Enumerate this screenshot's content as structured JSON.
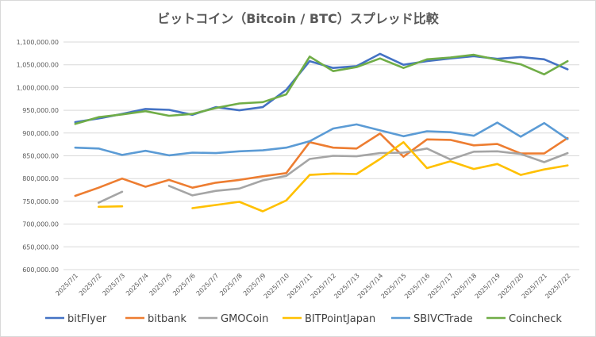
{
  "chart_data": {
    "type": "line",
    "title": "ビットコイン（Bitcoin / BTC）スプレッド比較",
    "xlabel": "",
    "ylabel": "",
    "ylim": [
      600000,
      1100000
    ],
    "yticks": [
      "600,000.00",
      "650,000.00",
      "700,000.00",
      "750,000.00",
      "800,000.00",
      "850,000.00",
      "900,000.00",
      "950,000.00",
      "1,000,000.00",
      "1,050,000.00",
      "1,100,000.00"
    ],
    "ytick_values": [
      600000,
      650000,
      700000,
      750000,
      800000,
      850000,
      900000,
      950000,
      1000000,
      1050000,
      1100000
    ],
    "grid": true,
    "legend_position": "bottom",
    "categories": [
      "2025/7/1",
      "2025/7/2",
      "2025/7/3",
      "2025/7/4",
      "2025/7/5",
      "2025/7/6",
      "2025/7/7",
      "2025/7/8",
      "2025/7/9",
      "2025/7/10",
      "2025/7/11",
      "2025/7/12",
      "2025/7/13",
      "2025/7/14",
      "2025/7/15",
      "2025/7/16",
      "2025/7/17",
      "2025/7/18",
      "2025/7/19",
      "2025/7/20",
      "2025/7/21",
      "2025/7/22"
    ],
    "series": [
      {
        "name": "bitFlyer",
        "color": "#4472c4",
        "values": [
          924000,
          932000,
          942000,
          953000,
          951000,
          940000,
          957000,
          950000,
          957000,
          995000,
          1058000,
          1043000,
          1047000,
          1074000,
          1050000,
          1058000,
          1064000,
          1069000,
          1063000,
          1067000,
          1062000,
          1040000
        ]
      },
      {
        "name": "bitbank",
        "color": "#ed7d31",
        "values": [
          762000,
          780000,
          800000,
          782000,
          797000,
          780000,
          791000,
          797000,
          805000,
          812000,
          880000,
          868000,
          866000,
          899000,
          848000,
          886000,
          885000,
          873000,
          876000,
          855000,
          855000,
          889000
        ]
      },
      {
        "name": "GMOCoin",
        "color": "#a5a5a5",
        "values": [
          null,
          747000,
          771000,
          null,
          784000,
          763000,
          773000,
          778000,
          796000,
          806000,
          843000,
          850000,
          849000,
          856000,
          857000,
          866000,
          842000,
          859000,
          860000,
          854000,
          836000,
          856000
        ]
      },
      {
        "name": "BITPointJapan",
        "color": "#ffc000",
        "values": [
          null,
          738000,
          739000,
          null,
          null,
          735000,
          742000,
          749000,
          728000,
          752000,
          808000,
          811000,
          810000,
          843000,
          880000,
          823000,
          838000,
          821000,
          832000,
          808000,
          820000,
          829000
        ]
      },
      {
        "name": "SBIVCTrade",
        "color": "#5b9bd5",
        "values": [
          868000,
          866000,
          852000,
          861000,
          851000,
          857000,
          856000,
          860000,
          862000,
          868000,
          882000,
          910000,
          919000,
          906000,
          893000,
          904000,
          902000,
          894000,
          923000,
          892000,
          922000,
          887000
        ]
      },
      {
        "name": "Coincheck",
        "color": "#70ad47",
        "values": [
          920000,
          935000,
          941000,
          948000,
          938000,
          942000,
          955000,
          965000,
          968000,
          985000,
          1068000,
          1036000,
          1045000,
          1064000,
          1043000,
          1062000,
          1066000,
          1072000,
          1061000,
          1051000,
          1029000,
          1058000
        ]
      }
    ]
  }
}
